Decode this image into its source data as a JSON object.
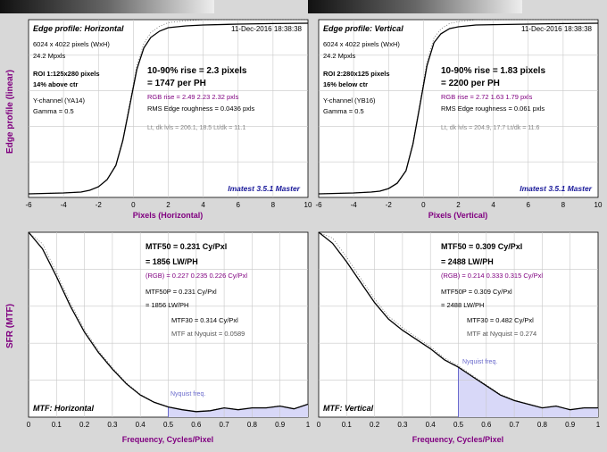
{
  "colors": {
    "background": "#d8d8d8",
    "panel": "#ffffff",
    "axis_label": "#800080",
    "rgb_text": "#800080",
    "watermark": "#1a1a9a",
    "nyquist": "#6a6acc",
    "fill": "#d8d8f8",
    "curve": "#000000"
  },
  "y_labels": {
    "top": "Edge profile (linear)",
    "bottom": "SFR (MTF)"
  },
  "panels": {
    "edge_h": {
      "title": "Edge profile: Horizontal",
      "date": "11-Dec-2016 18:38:38",
      "res": "6024 x 4022 pixels (WxH)",
      "mp": "24.2 Mpxls",
      "roi_label": "ROI 1:",
      "roi_size": "125x280 pixels",
      "roi_pos": "14% above ctr",
      "channel": "Y-channel (YA14)",
      "gamma": "Gamma = 0.5",
      "rise": "10-90% rise = 2.3 pixels",
      "per_ph": "= 1747 per PH",
      "rgb_rise": "RGB rise = 2.49  2.23  2.32 pxls",
      "roughness": "RMS Edge roughness = 0.0436 pxls",
      "levels": "Lt, dk lvls = 206.1, 18.5   Lt/dk = 11.1",
      "watermark": "Imatest 3.5.1 Master",
      "xlabel": "Pixels (Horizontal)"
    },
    "edge_v": {
      "title": "Edge profile: Vertical",
      "date": "11-Dec-2016 18:38:38",
      "res": "6024 x 4022 pixels (WxH)",
      "mp": "24.2 Mpxls",
      "roi_label": "ROI 2:",
      "roi_size": "280x125 pixels",
      "roi_pos": "16% below ctr",
      "channel": "Y-channel (YB16)",
      "gamma": "Gamma = 0.5",
      "rise": "10-90% rise = 1.83 pixels",
      "per_ph": "= 2200 per PH",
      "rgb_rise": "RGB rise = 2.72  1.63  1.79 pxls",
      "roughness": "RMS Edge roughness = 0.061 pxls",
      "levels": "Lt, dk lvls = 204.9, 17.7   Lt/dk = 11.6",
      "watermark": "Imatest 3.5.1 Master",
      "xlabel": "Pixels (Vertical)"
    },
    "mtf_h": {
      "mtf50": "MTF50 = 0.231 Cy/Pxl",
      "lwph": "= 1856 LW/PH",
      "rgb": "(RGB) = 0.227  0.235  0.226 Cy/Pxl",
      "mtf50p": "MTF50P = 0.231 Cy/Pxl",
      "mtf50p_lwph": "= 1856 LW/PH",
      "mtf30": "MTF30 = 0.314 Cy/Pxl",
      "nyq_text": "MTF at Nyquist = 0.0589",
      "nyq_label": "Nyquist freq.",
      "corner": "MTF: Horizontal",
      "xlabel": "Frequency, Cycles/Pixel"
    },
    "mtf_v": {
      "mtf50": "MTF50 = 0.309 Cy/Pxl",
      "lwph": "= 2488 LW/PH",
      "rgb": "(RGB) = 0.214  0.333  0.315 Cy/Pxl",
      "mtf50p": "MTF50P = 0.309 Cy/Pxl",
      "mtf50p_lwph": "= 2488 LW/PH",
      "mtf30": "MTF30 = 0.482 Cy/Pxl",
      "nyq_text": "MTF at Nyquist = 0.274",
      "nyq_label": "Nyquist freq.",
      "corner": "MTF: Vertical",
      "xlabel": "Frequency, Cycles/Pixel"
    }
  },
  "chart_data": [
    {
      "type": "line",
      "title": "Edge profile: Horizontal",
      "xlabel": "Pixels (Horizontal)",
      "ylabel": "Edge profile (linear)",
      "xlim": [
        -6,
        10
      ],
      "ylim": [
        0,
        1
      ],
      "xticks": [
        -6,
        -4,
        -2,
        0,
        2,
        4,
        6,
        8,
        10
      ],
      "grid": true,
      "series": [
        {
          "x": [
            -6,
            -4,
            -3,
            -2.5,
            -2,
            -1.5,
            -1,
            -0.6,
            -0.2,
            0.2,
            0.6,
            1,
            1.5,
            2,
            3,
            4,
            6,
            8,
            10
          ],
          "y": [
            0.02,
            0.025,
            0.03,
            0.04,
            0.06,
            0.1,
            0.18,
            0.32,
            0.52,
            0.72,
            0.84,
            0.9,
            0.935,
            0.955,
            0.965,
            0.97,
            0.975,
            0.978,
            0.98
          ]
        }
      ]
    },
    {
      "type": "line",
      "title": "Edge profile: Vertical",
      "xlabel": "Pixels (Vertical)",
      "ylabel": "Edge profile (linear)",
      "xlim": [
        -6,
        10
      ],
      "ylim": [
        0,
        1
      ],
      "xticks": [
        -6,
        -4,
        -2,
        0,
        2,
        4,
        6,
        8,
        10
      ],
      "grid": true,
      "series": [
        {
          "x": [
            -6,
            -4,
            -3,
            -2.5,
            -2,
            -1.5,
            -1,
            -0.6,
            -0.2,
            0.2,
            0.6,
            1,
            1.5,
            2,
            3,
            4,
            6,
            8,
            10
          ],
          "y": [
            0.02,
            0.025,
            0.03,
            0.035,
            0.05,
            0.08,
            0.15,
            0.3,
            0.52,
            0.74,
            0.87,
            0.92,
            0.95,
            0.96,
            0.97,
            0.972,
            0.975,
            0.978,
            0.98
          ]
        }
      ]
    },
    {
      "type": "line",
      "title": "MTF: Horizontal",
      "xlabel": "Frequency, Cycles/Pixel",
      "ylabel": "SFR (MTF)",
      "xlim": [
        0,
        1
      ],
      "ylim": [
        0,
        1
      ],
      "xticks": [
        0,
        0.1,
        0.2,
        0.3,
        0.4,
        0.5,
        0.6,
        0.7,
        0.8,
        0.9,
        1
      ],
      "grid": true,
      "nyquist": 0.5,
      "series": [
        {
          "x": [
            0,
            0.05,
            0.1,
            0.15,
            0.2,
            0.25,
            0.3,
            0.35,
            0.4,
            0.45,
            0.5,
            0.55,
            0.6,
            0.65,
            0.7,
            0.75,
            0.8,
            0.85,
            0.9,
            0.95,
            1
          ],
          "y": [
            1,
            0.91,
            0.76,
            0.6,
            0.46,
            0.35,
            0.26,
            0.18,
            0.12,
            0.08,
            0.055,
            0.04,
            0.03,
            0.035,
            0.05,
            0.04,
            0.05,
            0.05,
            0.06,
            0.045,
            0.07
          ]
        }
      ]
    },
    {
      "type": "line",
      "title": "MTF: Vertical",
      "xlabel": "Frequency, Cycles/Pixel",
      "ylabel": "SFR (MTF)",
      "xlim": [
        0,
        1
      ],
      "ylim": [
        0,
        1
      ],
      "xticks": [
        0,
        0.1,
        0.2,
        0.3,
        0.4,
        0.5,
        0.6,
        0.7,
        0.8,
        0.9,
        1
      ],
      "grid": true,
      "nyquist": 0.5,
      "series": [
        {
          "x": [
            0,
            0.05,
            0.1,
            0.15,
            0.2,
            0.25,
            0.3,
            0.35,
            0.4,
            0.45,
            0.5,
            0.55,
            0.6,
            0.65,
            0.7,
            0.75,
            0.8,
            0.85,
            0.9,
            0.95,
            1
          ],
          "y": [
            1,
            0.94,
            0.84,
            0.73,
            0.62,
            0.53,
            0.47,
            0.42,
            0.37,
            0.31,
            0.27,
            0.22,
            0.17,
            0.12,
            0.09,
            0.07,
            0.05,
            0.06,
            0.04,
            0.05,
            0.05
          ]
        }
      ]
    }
  ]
}
